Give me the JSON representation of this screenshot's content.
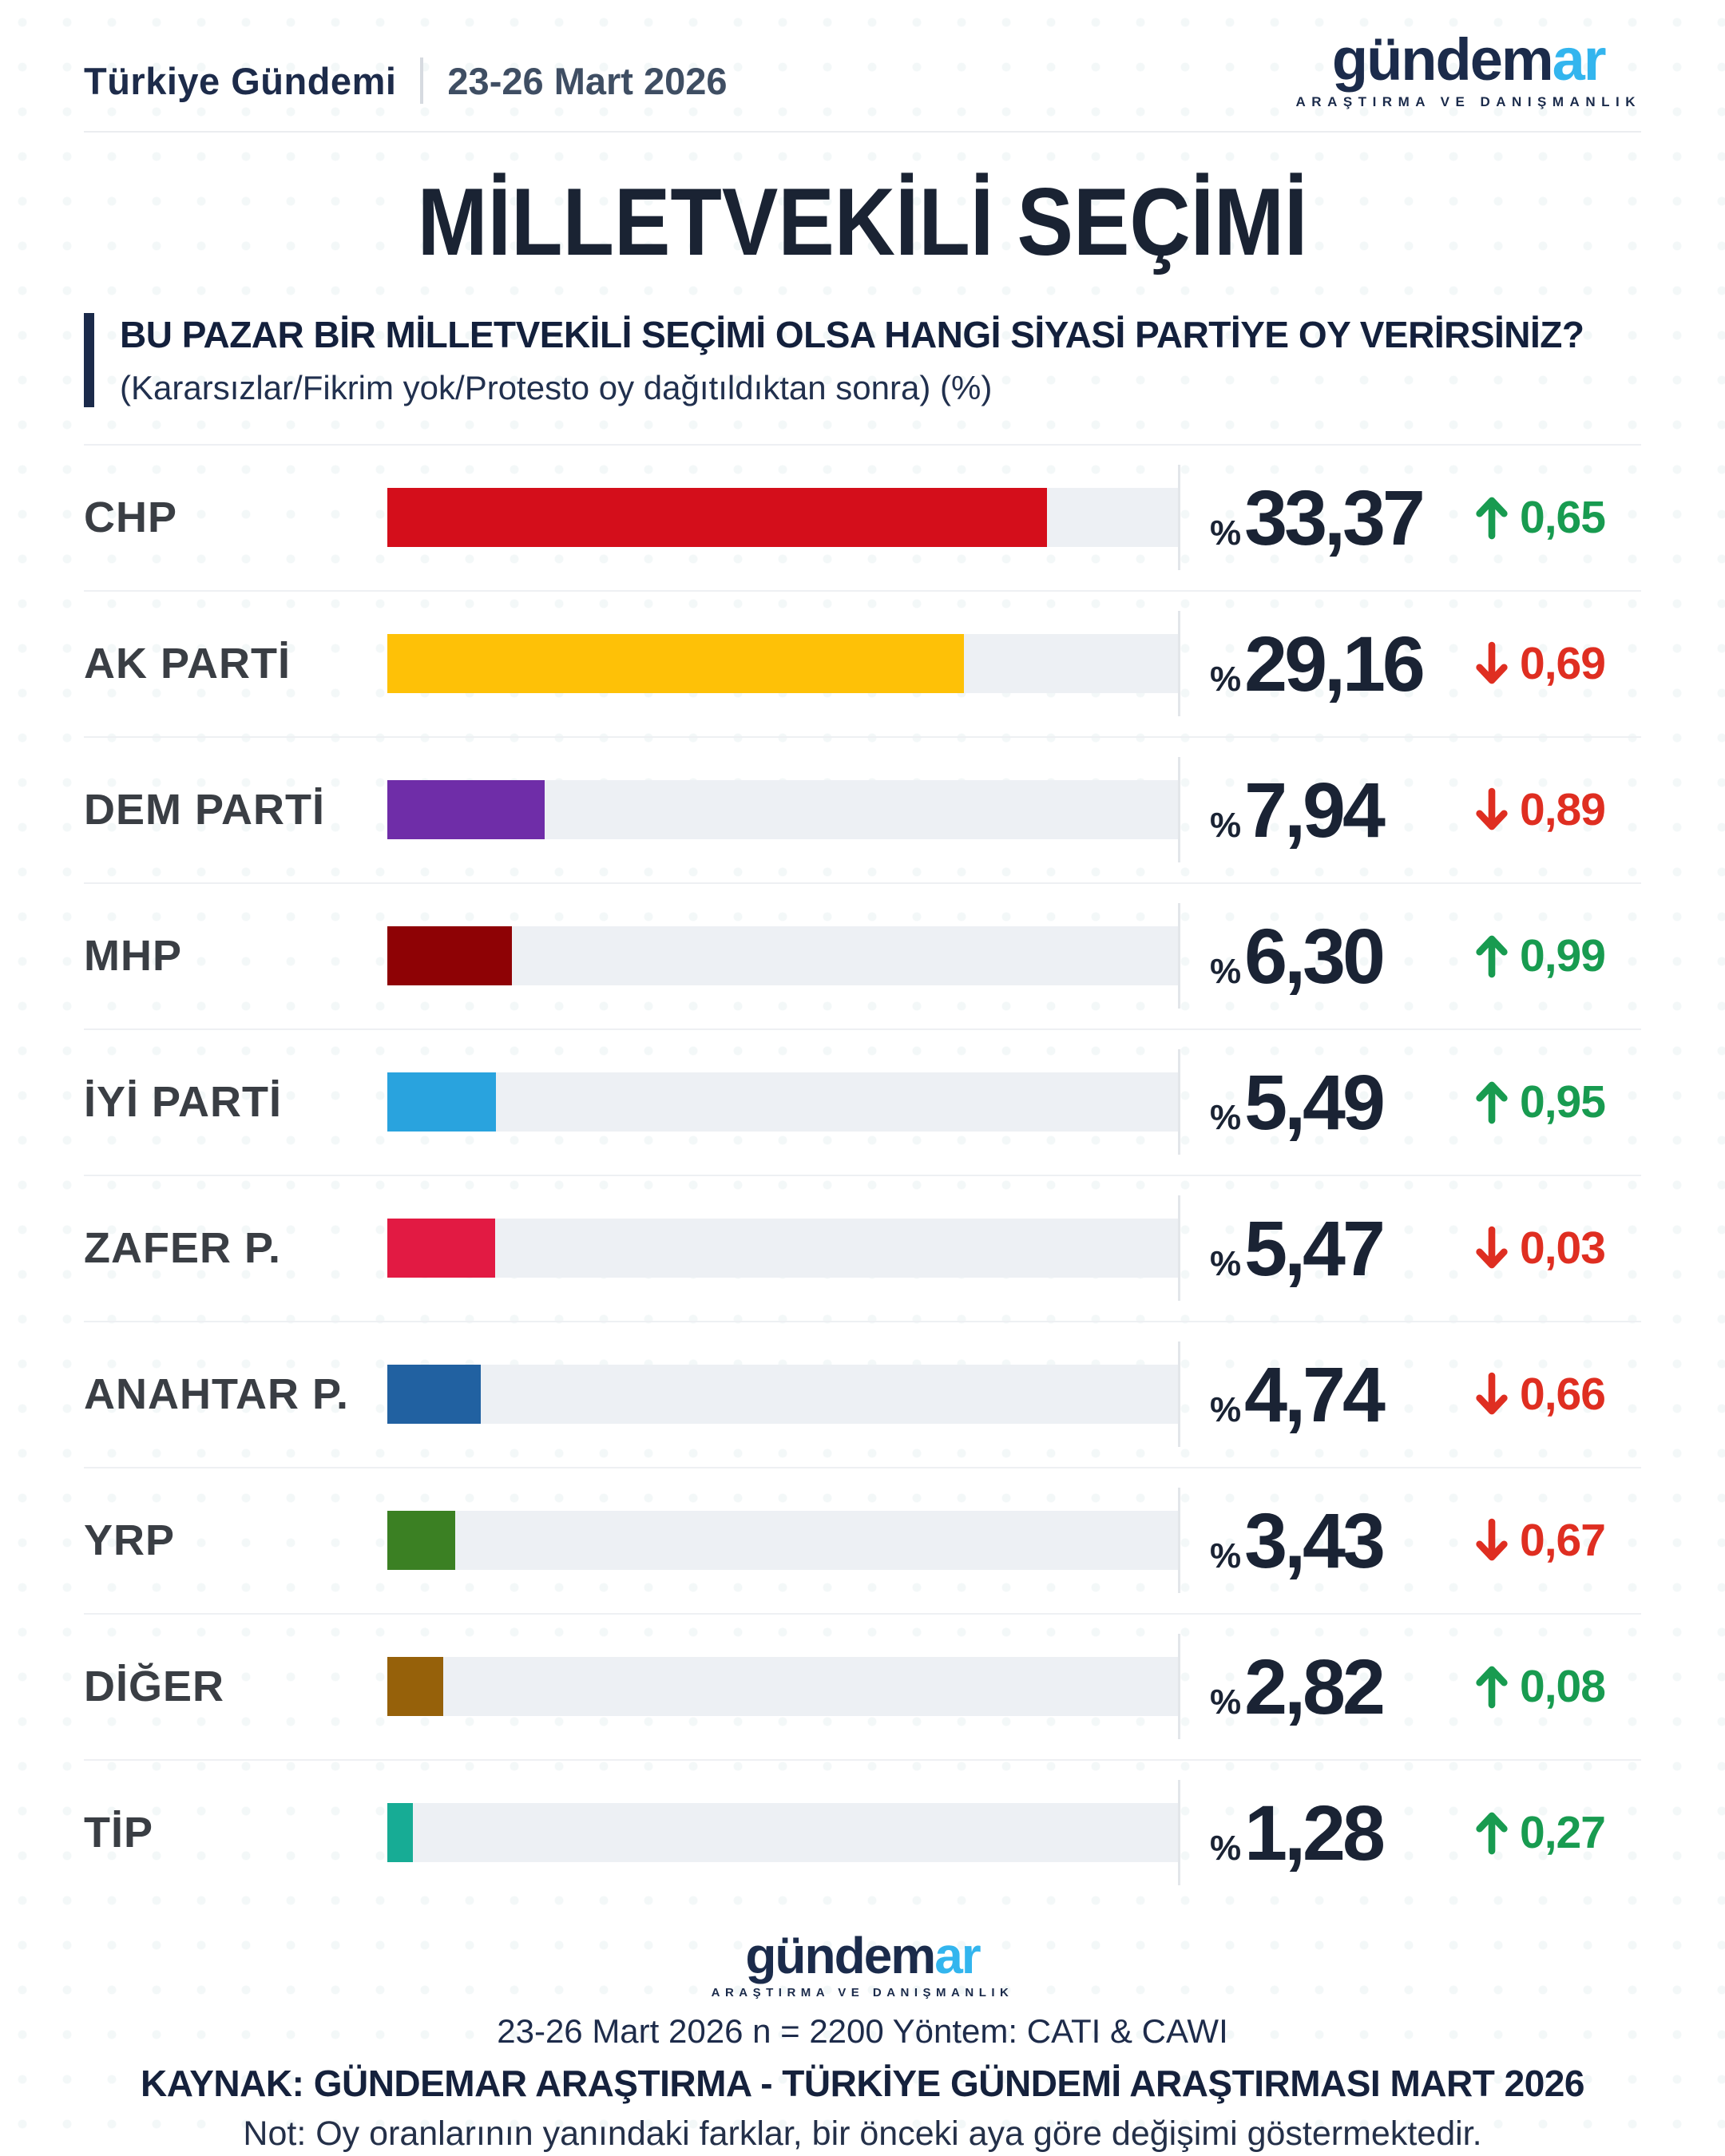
{
  "header": {
    "brand": "Türkiye Gündemi",
    "date": "23-26 Mart 2026"
  },
  "logo": {
    "word_main": "gündem",
    "word_accent": "ar",
    "tagline": "ARAŞTIRMA VE DANIŞMANLIK"
  },
  "title": "MİLLETVEKİLİ SEÇİMİ",
  "question": {
    "main": "BU PAZAR BİR MİLLETVEKİLİ SEÇİMİ OLSA HANGİ SİYASİ PARTİYE OY VERİRSİNİZ?",
    "sub": "(Kararsızlar/Fikrim yok/Protesto oy dağıtıldıktan sonra) (%)"
  },
  "percent_prefix": "%",
  "chart_data": {
    "type": "bar",
    "orientation": "horizontal",
    "title": "MİLLETVEKİLİ SEÇİMİ",
    "unit": "%",
    "xlim": [
      0,
      40
    ],
    "grid": false,
    "categories": [
      "CHP",
      "AK PARTİ",
      "DEM PARTİ",
      "MHP",
      "İYİ PARTİ",
      "ZAFER P.",
      "ANAHTAR P.",
      "YRP",
      "DİĞER",
      "TİP"
    ],
    "values": [
      33.37,
      29.16,
      7.94,
      6.3,
      5.49,
      5.47,
      4.74,
      3.43,
      2.82,
      1.28
    ],
    "changes_vs_previous_month": [
      0.65,
      -0.69,
      -0.89,
      0.99,
      0.95,
      -0.03,
      -0.66,
      -0.67,
      0.08,
      0.27
    ],
    "bar_colors": [
      "#d40e1b",
      "#fec107",
      "#6f2da8",
      "#8e0205",
      "#29a3de",
      "#e21a43",
      "#2161a1",
      "#3b8023",
      "#96610a",
      "#17ac95"
    ]
  },
  "rows": [
    {
      "name": "CHP",
      "value": 33.37,
      "value_label": "33,37",
      "direction": "up",
      "change_label": "0,65",
      "color": "#d40e1b"
    },
    {
      "name": "AK PARTİ",
      "value": 29.16,
      "value_label": "29,16",
      "direction": "down",
      "change_label": "0,69",
      "color": "#fec107"
    },
    {
      "name": "DEM PARTİ",
      "value": 7.94,
      "value_label": "7,94",
      "direction": "down",
      "change_label": "0,89",
      "color": "#6f2da8"
    },
    {
      "name": "MHP",
      "value": 6.3,
      "value_label": "6,30",
      "direction": "up",
      "change_label": "0,99",
      "color": "#8e0205"
    },
    {
      "name": "İYİ PARTİ",
      "value": 5.49,
      "value_label": "5,49",
      "direction": "up",
      "change_label": "0,95",
      "color": "#29a3de"
    },
    {
      "name": "ZAFER P.",
      "value": 5.47,
      "value_label": "5,47",
      "direction": "down",
      "change_label": "0,03",
      "color": "#e21a43"
    },
    {
      "name": "ANAHTAR P.",
      "value": 4.74,
      "value_label": "4,74",
      "direction": "down",
      "change_label": "0,66",
      "color": "#2161a1"
    },
    {
      "name": "YRP",
      "value": 3.43,
      "value_label": "3,43",
      "direction": "down",
      "change_label": "0,67",
      "color": "#3b8023"
    },
    {
      "name": "DİĞER",
      "value": 2.82,
      "value_label": "2,82",
      "direction": "up",
      "change_label": "0,08",
      "color": "#96610a"
    },
    {
      "name": "TİP",
      "value": 1.28,
      "value_label": "1,28",
      "direction": "up",
      "change_label": "0,27",
      "color": "#17ac95"
    }
  ],
  "colors": {
    "up": "#189b50",
    "down": "#df2e21",
    "bar_track": "#edf0f4",
    "question_accent": "#1b2a4a",
    "logo_dark": "#1b2b4b",
    "logo_accent": "#33b5ee",
    "value_text": "#1a2334",
    "label_text": "#3a3e44"
  },
  "footer": {
    "line1": "23-26 Mart 2026 n = 2200 Yöntem: CATI & CAWI",
    "line2": "KAYNAK: GÜNDEMAR ARAŞTIRMA - TÜRKİYE GÜNDEMİ ARAŞTIRMASI MART 2026",
    "line3": "Not: Oy oranlarının yanındaki farklar, bir önceki aya göre değişimi göstermektedir."
  }
}
